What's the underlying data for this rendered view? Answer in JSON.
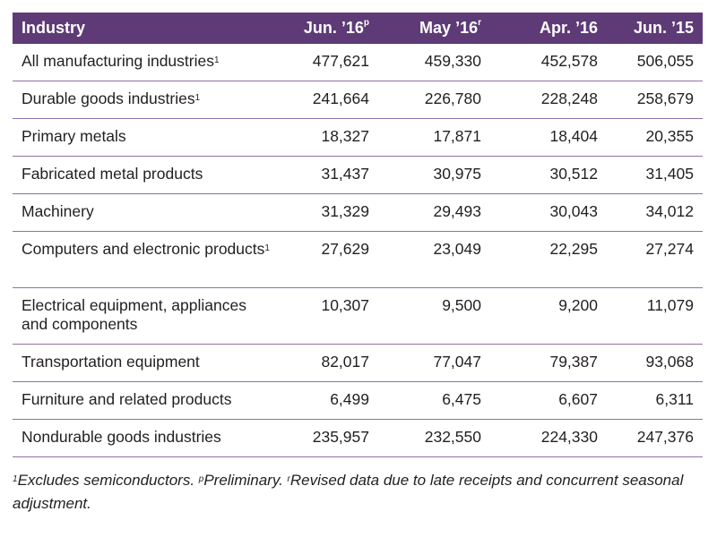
{
  "colors": {
    "header_bg": "#5e3b76",
    "rule": "#8a74a3"
  },
  "chart_data": {
    "type": "table",
    "columns": [
      "Industry",
      "Jun. ’16",
      "May ’16",
      "Apr. ’16",
      "Jun. ’15"
    ],
    "column_superscripts": [
      "",
      "p",
      "r",
      "",
      ""
    ],
    "rows": [
      {
        "industry": "All manufacturing industries",
        "sup": "1",
        "values": [
          "477,621",
          "459,330",
          "452,578",
          "506,055"
        ]
      },
      {
        "industry": "Durable goods industries",
        "sup": "1",
        "values": [
          "241,664",
          "226,780",
          "228,248",
          "258,679"
        ]
      },
      {
        "industry": "Primary metals",
        "sup": "",
        "values": [
          "18,327",
          "17,871",
          "18,404",
          "20,355"
        ]
      },
      {
        "industry": "Fabricated metal products",
        "sup": "",
        "values": [
          "31,437",
          "30,975",
          "30,512",
          "31,405"
        ]
      },
      {
        "industry": "Machinery",
        "sup": "",
        "values": [
          "31,329",
          "29,493",
          "30,043",
          "34,012"
        ]
      },
      {
        "industry": "Computers and electronic products",
        "sup": "1",
        "values": [
          "27,629",
          "23,049",
          "22,295",
          "27,274"
        ]
      },
      {
        "industry": "Electrical equipment, appliances and components",
        "sup": "",
        "values": [
          "10,307",
          "9,500",
          "9,200",
          "11,079"
        ]
      },
      {
        "industry": "Transportation equipment",
        "sup": "",
        "values": [
          "82,017",
          "77,047",
          "79,387",
          "93,068"
        ]
      },
      {
        "industry": "Furniture and related products",
        "sup": "",
        "values": [
          "6,499",
          "6,475",
          "6,607",
          "6,311"
        ]
      },
      {
        "industry": "Nondurable goods industries",
        "sup": "",
        "values": [
          "235,957",
          "232,550",
          "224,330",
          "247,376"
        ]
      }
    ]
  },
  "footnote": {
    "n1_sup": "1",
    "n1_text": "Excludes semiconductors. ",
    "p_sup": "p",
    "p_text": "Preliminary. ",
    "r_sup": "r",
    "r_text": "Revised data due to late receipts and concurrent seasonal adjustment."
  }
}
